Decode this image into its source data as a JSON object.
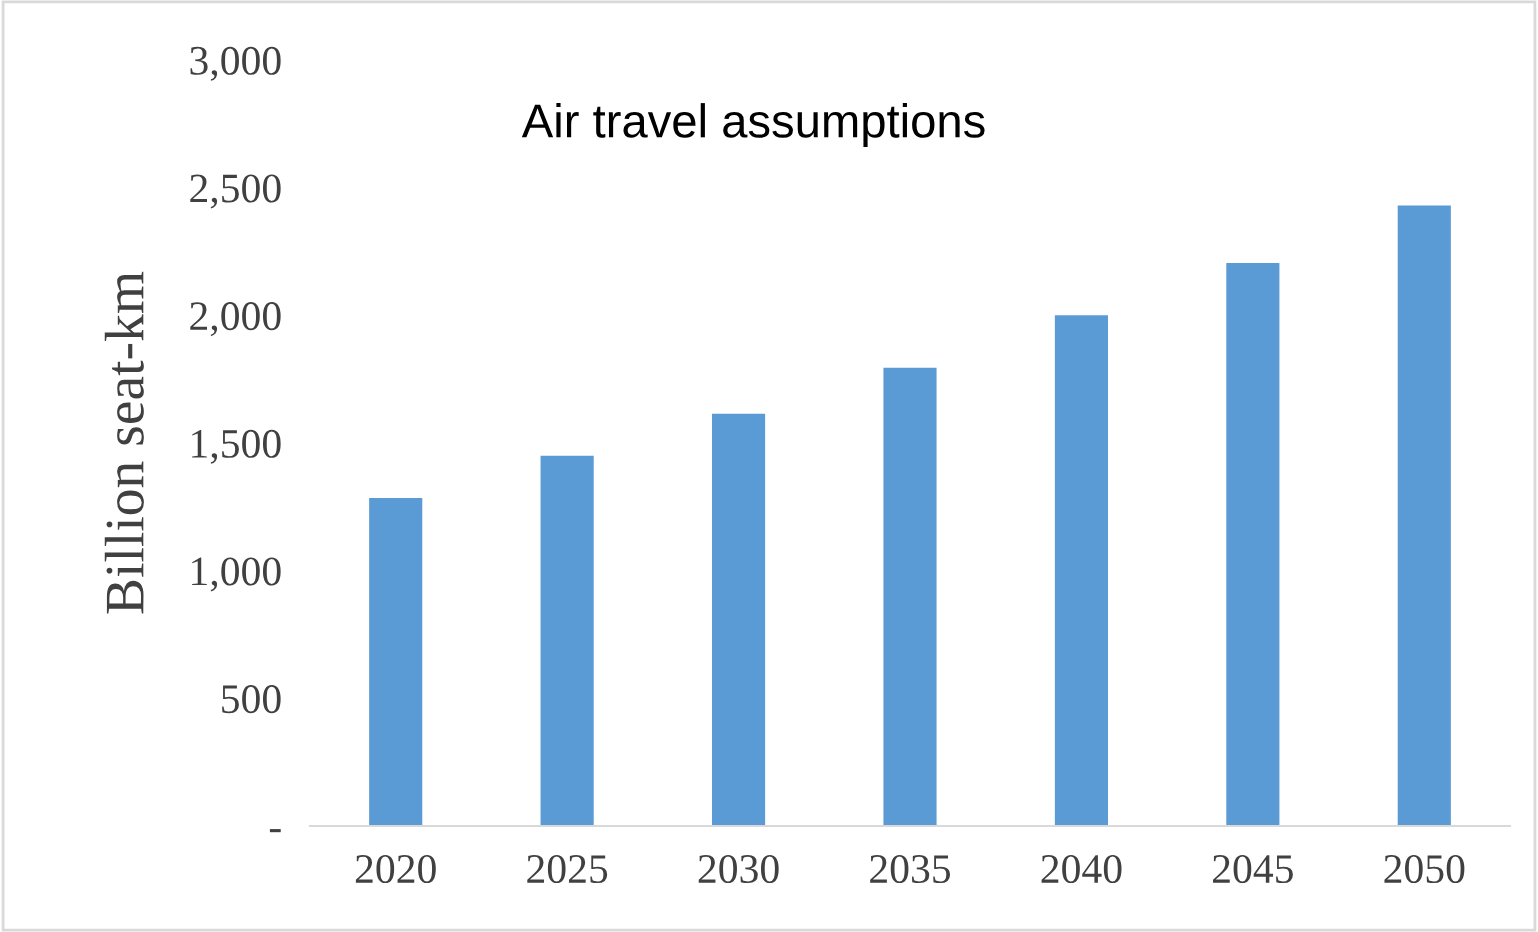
{
  "chart_data": {
    "type": "bar",
    "title": "Air travel assumptions",
    "ylabel": "Billion seat-km",
    "categories": [
      "2020",
      "2025",
      "2030",
      "2035",
      "2040",
      "2045",
      "2050"
    ],
    "values": [
      1285,
      1450,
      1615,
      1795,
      2000,
      2205,
      2430
    ],
    "color": "#5b9bd5",
    "ylim": [
      0,
      3000
    ],
    "yticks": [
      {
        "value": 0,
        "label": "-"
      },
      {
        "value": 500,
        "label": "500"
      },
      {
        "value": 1000,
        "label": "1,000"
      },
      {
        "value": 1500,
        "label": "1,500"
      },
      {
        "value": 2000,
        "label": "2,000"
      },
      {
        "value": 2500,
        "label": "2,500"
      },
      {
        "value": 3000,
        "label": "3,000"
      }
    ],
    "grid": false,
    "legend": false
  }
}
